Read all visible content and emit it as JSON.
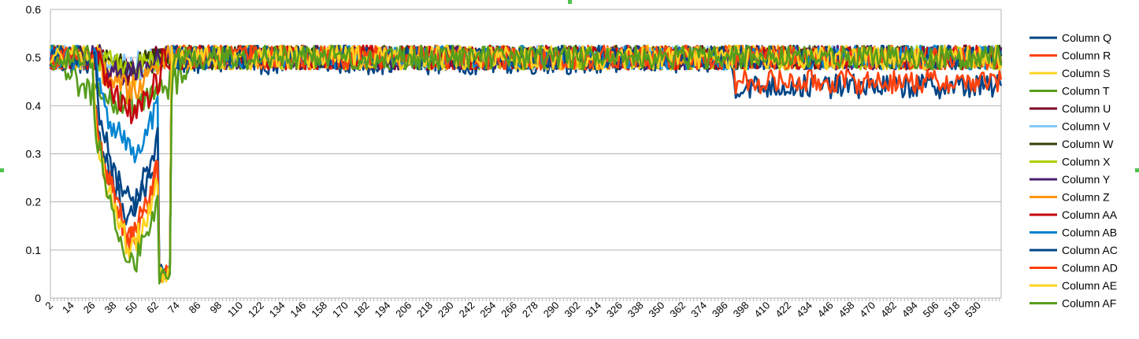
{
  "chart_data": {
    "type": "line",
    "title": "",
    "xlabel": "",
    "ylabel": "",
    "ylim": [
      0,
      0.6
    ],
    "y_ticks": [
      0,
      0.1,
      0.2,
      0.3,
      0.4,
      0.5,
      0.6
    ],
    "y_tick_labels": [
      "0",
      "0.1",
      "0.2",
      "0.3",
      "0.4",
      "0.5",
      "0.6"
    ],
    "x_range": [
      2,
      543
    ],
    "x_tick_labels": [
      "2",
      "14",
      "26",
      "38",
      "50",
      "62",
      "74",
      "86",
      "98",
      "110",
      "122",
      "134",
      "146",
      "158",
      "170",
      "182",
      "194",
      "206",
      "218",
      "230",
      "242",
      "254",
      "266",
      "278",
      "290",
      "302",
      "314",
      "326",
      "338",
      "350",
      "362",
      "374",
      "386",
      "398",
      "410",
      "422",
      "434",
      "446",
      "458",
      "470",
      "482",
      "494",
      "506",
      "518",
      "530"
    ],
    "grid": "horizontal",
    "legend_position": "right",
    "series": [
      {
        "name": "Column Q",
        "color": "#004586",
        "baseline": 0.49,
        "dip_min": 0.16,
        "dip_start": 26,
        "dip_end": 68,
        "late_drop": 0.05
      },
      {
        "name": "Column R",
        "color": "#ff420e",
        "baseline": 0.5,
        "dip_min": 0.12,
        "dip_start": 26,
        "dip_end": 70,
        "late_drop": 0.05
      },
      {
        "name": "Column S",
        "color": "#ffd320",
        "baseline": 0.5,
        "dip_min": 0.46,
        "dip_start": 30,
        "dip_end": 62,
        "late_drop": 0.0
      },
      {
        "name": "Column T",
        "color": "#579d1c",
        "baseline": 0.5,
        "dip_min": 0.4,
        "dip_start": 10,
        "dip_end": 80,
        "late_drop": 0.0
      },
      {
        "name": "Column U",
        "color": "#7e0021",
        "baseline": 0.5,
        "dip_min": 0.47,
        "dip_start": 30,
        "dip_end": 62,
        "late_drop": 0.0
      },
      {
        "name": "Column V",
        "color": "#83caff",
        "baseline": 0.5,
        "dip_min": 0.48,
        "dip_start": 30,
        "dip_end": 62,
        "late_drop": 0.0
      },
      {
        "name": "Column W",
        "color": "#314004",
        "baseline": 0.5,
        "dip_min": 0.48,
        "dip_start": 30,
        "dip_end": 62,
        "late_drop": 0.0
      },
      {
        "name": "Column X",
        "color": "#aecf00",
        "baseline": 0.5,
        "dip_min": 0.48,
        "dip_start": 30,
        "dip_end": 62,
        "late_drop": 0.0
      },
      {
        "name": "Column Y",
        "color": "#4b1f6f",
        "baseline": 0.5,
        "dip_min": 0.47,
        "dip_start": 30,
        "dip_end": 62,
        "late_drop": 0.0
      },
      {
        "name": "Column Z",
        "color": "#ff950e",
        "baseline": 0.5,
        "dip_min": 0.43,
        "dip_start": 30,
        "dip_end": 64,
        "late_drop": 0.0
      },
      {
        "name": "Column AA",
        "color": "#c5000b",
        "baseline": 0.5,
        "dip_min": 0.39,
        "dip_start": 30,
        "dip_end": 66,
        "late_drop": 0.0
      },
      {
        "name": "Column AB",
        "color": "#0084d1",
        "baseline": 0.5,
        "dip_min": 0.3,
        "dip_start": 28,
        "dip_end": 68,
        "late_drop": 0.0
      },
      {
        "name": "Column AC",
        "color": "#004586",
        "baseline": 0.5,
        "dip_min": 0.19,
        "dip_start": 28,
        "dip_end": 68,
        "late_drop": 0.0
      },
      {
        "name": "Column AD",
        "color": "#ff420e",
        "baseline": 0.5,
        "dip_min": 0.11,
        "dip_start": 26,
        "dip_end": 70,
        "late_drop": 0.0
      },
      {
        "name": "Column AE",
        "color": "#ffd320",
        "baseline": 0.5,
        "dip_min": 0.09,
        "dip_start": 26,
        "dip_end": 70,
        "late_drop": 0.0
      },
      {
        "name": "Column AF",
        "color": "#579d1c",
        "baseline": 0.5,
        "dip_min": 0.06,
        "dip_start": 26,
        "dip_end": 72,
        "late_drop": 0.0
      }
    ]
  }
}
